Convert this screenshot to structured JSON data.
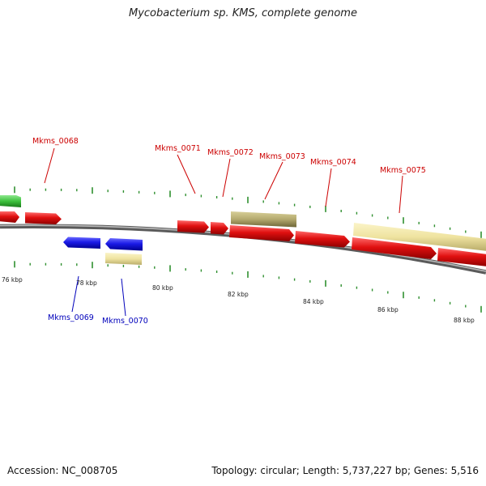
{
  "title": "Mycobacterium sp. KMS, complete genome",
  "footer": {
    "accession": "Accession: NC_008705",
    "stats": "Topology: circular; Length: 5,737,227 bp; Genes: 5,516"
  },
  "colors": {
    "forward_gene": "#e01010",
    "reverse_gene": "#1a1ae6",
    "rna_pale": "#efe3a0",
    "rna_dark": "#b3a96e",
    "green_feature": "#3cc03c",
    "backbone": "#808080",
    "ticks": "#2f8f2f",
    "label_forward": "#cc0000",
    "label_reverse": "#0000bb"
  },
  "scale_ticks": [
    "76 kbp",
    "78 kbp",
    "80 kbp",
    "82 kbp",
    "84 kbp",
    "86 kbp",
    "88 kbp"
  ],
  "genes": {
    "forward": [
      "Mkms_0068",
      "Mkms_0071",
      "Mkms_0072",
      "Mkms_0073",
      "Mkms_0074",
      "Mkms_0075"
    ],
    "reverse": [
      "Mkms_0069",
      "Mkms_0070"
    ]
  }
}
